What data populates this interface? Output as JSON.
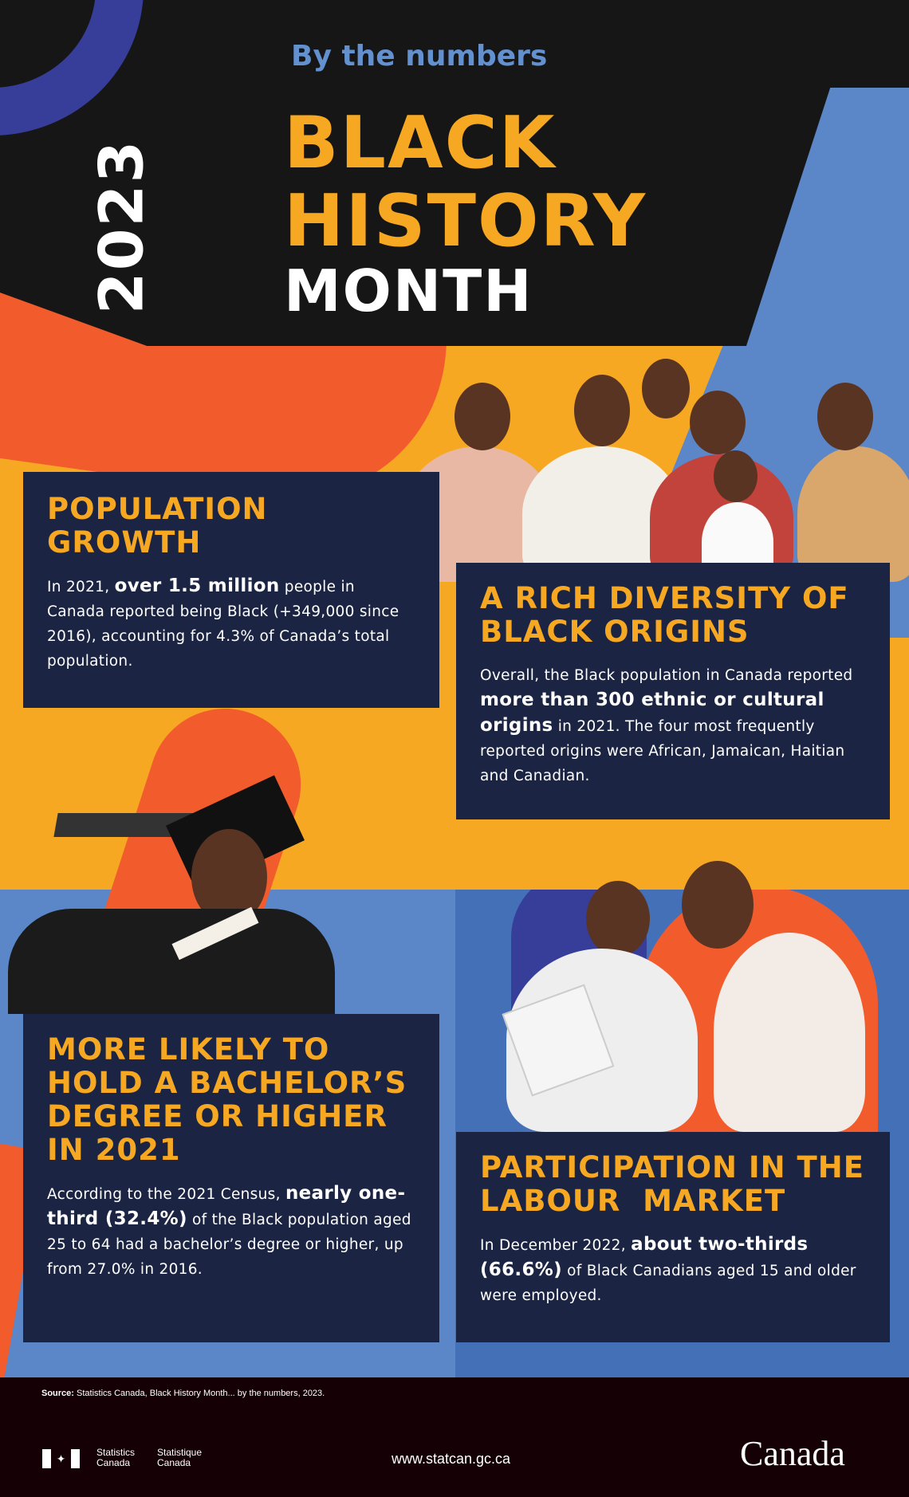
{
  "header": {
    "subtitle": "By the numbers",
    "year": "2023",
    "title_line1": "BLACK",
    "title_line2": "HISTORY",
    "title_line3": "MONTH"
  },
  "colors": {
    "black": "#161616",
    "yellow": "#f7a823",
    "orange": "#f25c2c",
    "light_blue": "#5b87c8",
    "blue": "#4470b8",
    "navy": "#1b2442",
    "royal_blue": "#373e9a",
    "footer": "#140005"
  },
  "sections": [
    {
      "heading": "POPULATION GROWTH",
      "text_before": "In 2021, ",
      "highlight": "over 1.5 million",
      "text_after": " people in Canada reported being Black (+349,000 since 2016), accounting for 4.3% of Canada’s total population."
    },
    {
      "heading": "A RICH DIVERSITY OF BLACK ORIGINS",
      "text_before": "Overall, the Black population in Canada reported ",
      "highlight": "more than 300 ethnic or cultural origins",
      "text_after": " in 2021. The four most frequently reported origins were African, Jamaican, Haitian and Canadian."
    },
    {
      "heading": "MORE LIKELY TO HOLD A BACHELOR’S DEGREE OR HIGHER IN 2021",
      "text_before": "According to the 2021 Census, ",
      "highlight": "nearly one-third (32.4%)",
      "text_after": " of the Black population aged 25 to 64 had a bachelor’s degree or higher, up from 27.0% in 2016."
    },
    {
      "heading": "PARTICIPATION IN THE LABOUR  MARKET",
      "text_before": "In December 2022, ",
      "highlight": "about two-thirds (66.6%)",
      "text_after": " of Black Canadians aged 15 and older were employed."
    }
  ],
  "footer": {
    "source_label": "Source:",
    "source_text": " Statistics Canada, Black History Month... by the numbers, 2023.",
    "org_en": "Statistics Canada",
    "org_fr": "Statistique Canada",
    "url": "www.statcan.gc.ca",
    "wordmark": "Canada"
  }
}
